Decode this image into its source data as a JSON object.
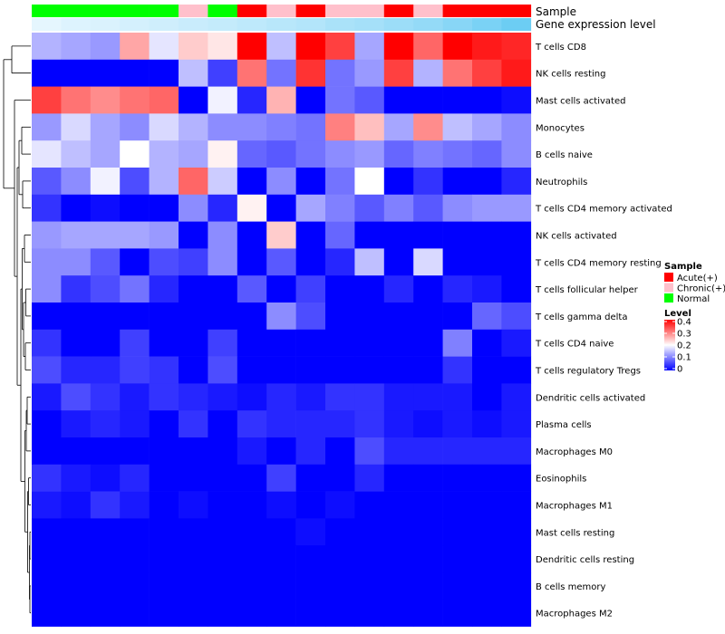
{
  "chart_data": {
    "type": "heatmap",
    "title": "",
    "annotation_tracks": [
      {
        "name": "Sample",
        "legend_title": "Sample"
      },
      {
        "name": "Gene expression level"
      }
    ],
    "rows": [
      "T cells CD8",
      "NK cells resting",
      "Mast cells activated",
      "Monocytes",
      "B cells naive",
      "Neutrophils",
      "T cells CD4 memory activated",
      "NK cells activated",
      "T cells CD4 memory resting",
      "T cells follicular helper",
      "T cells gamma delta",
      "T cells CD4 naive",
      "T cells regulatory  Tregs",
      "Dendritic cells activated",
      "Plasma cells",
      "Macrophages M0",
      "Eosinophils",
      "Macrophages M1",
      "Mast cells resting",
      "Dendritic cells resting",
      "B cells memory",
      "Macrophages M2"
    ],
    "sample_groups": [
      "Normal",
      "Normal",
      "Normal",
      "Normal",
      "Normal",
      "Chronic(+)",
      "Normal",
      "Acute(+)",
      "Chronic(+)",
      "Acute(+)",
      "Chronic(+)",
      "Chronic(+)",
      "Acute(+)",
      "Chronic(+)",
      "Acute(+)",
      "Acute(+)",
      "Acute(+)"
    ],
    "expression_level": [
      0.04,
      0.1,
      0.12,
      0.16,
      0.2,
      0.24,
      0.28,
      0.32,
      0.36,
      0.4,
      0.46,
      0.5,
      0.56,
      0.62,
      0.7,
      0.8,
      0.9
    ],
    "values": [
      [
        0.14,
        0.13,
        0.12,
        0.27,
        0.18,
        0.24,
        0.22,
        0.4,
        0.15,
        0.4,
        0.35,
        0.13,
        0.4,
        0.32,
        0.4,
        0.38,
        0.37
      ],
      [
        0.0,
        0.0,
        0.0,
        0.0,
        0.0,
        0.15,
        0.05,
        0.31,
        0.09,
        0.36,
        0.09,
        0.12,
        0.35,
        0.14,
        0.31,
        0.35,
        0.38
      ],
      [
        0.35,
        0.31,
        0.29,
        0.31,
        0.32,
        0.0,
        0.19,
        0.03,
        0.26,
        0.0,
        0.09,
        0.07,
        0.0,
        0.0,
        0.0,
        0.0,
        0.01
      ],
      [
        0.12,
        0.17,
        0.13,
        0.11,
        0.17,
        0.14,
        0.11,
        0.11,
        0.1,
        0.09,
        0.3,
        0.25,
        0.13,
        0.29,
        0.15,
        0.13,
        0.11
      ],
      [
        0.18,
        0.15,
        0.13,
        0.2,
        0.14,
        0.13,
        0.21,
        0.08,
        0.07,
        0.09,
        0.11,
        0.12,
        0.08,
        0.1,
        0.09,
        0.08,
        0.11
      ],
      [
        0.07,
        0.11,
        0.19,
        0.06,
        0.14,
        0.32,
        0.16,
        0.0,
        0.11,
        0.0,
        0.09,
        0.2,
        0.0,
        0.04,
        0.0,
        0.0,
        0.03
      ],
      [
        0.04,
        0.0,
        0.01,
        0.0,
        0.0,
        0.11,
        0.03,
        0.21,
        0.0,
        0.13,
        0.1,
        0.07,
        0.1,
        0.07,
        0.11,
        0.12,
        0.12
      ],
      [
        0.12,
        0.13,
        0.13,
        0.13,
        0.12,
        0.0,
        0.11,
        0.0,
        0.24,
        0.0,
        0.08,
        0.0,
        0.0,
        0.0,
        0.0,
        0.0,
        0.0
      ],
      [
        0.11,
        0.11,
        0.07,
        0.0,
        0.06,
        0.05,
        0.11,
        0.0,
        0.07,
        0.0,
        0.03,
        0.15,
        0.0,
        0.17,
        0.0,
        0.0,
        0.0
      ],
      [
        0.11,
        0.04,
        0.06,
        0.09,
        0.03,
        0.0,
        0.0,
        0.07,
        0.0,
        0.05,
        0.0,
        0.0,
        0.03,
        0.0,
        0.03,
        0.02,
        0.0
      ],
      [
        0.0,
        0.0,
        0.0,
        0.0,
        0.0,
        0.0,
        0.0,
        0.0,
        0.11,
        0.06,
        0.0,
        0.0,
        0.0,
        0.0,
        0.0,
        0.08,
        0.06
      ],
      [
        0.04,
        0.0,
        0.0,
        0.05,
        0.0,
        0.0,
        0.05,
        0.0,
        0.0,
        0.0,
        0.0,
        0.0,
        0.0,
        0.0,
        0.1,
        0.0,
        0.02
      ],
      [
        0.06,
        0.03,
        0.03,
        0.05,
        0.04,
        0.0,
        0.06,
        0.0,
        0.0,
        0.0,
        0.0,
        0.0,
        0.0,
        0.0,
        0.04,
        0.0,
        0.0
      ],
      [
        0.02,
        0.06,
        0.04,
        0.02,
        0.04,
        0.03,
        0.02,
        0.01,
        0.03,
        0.02,
        0.04,
        0.04,
        0.02,
        0.02,
        0.02,
        0.0,
        0.02
      ],
      [
        0.0,
        0.02,
        0.03,
        0.02,
        0.0,
        0.04,
        0.0,
        0.04,
        0.03,
        0.03,
        0.03,
        0.04,
        0.02,
        0.01,
        0.02,
        0.01,
        0.02
      ],
      [
        0.0,
        0.0,
        0.0,
        0.0,
        0.0,
        0.0,
        0.0,
        0.02,
        0.0,
        0.03,
        0.0,
        0.06,
        0.03,
        0.03,
        0.03,
        0.03,
        0.03
      ],
      [
        0.04,
        0.02,
        0.01,
        0.03,
        0.0,
        0.0,
        0.0,
        0.0,
        0.05,
        0.0,
        0.0,
        0.03,
        0.0,
        0.0,
        0.0,
        0.0,
        0.0
      ],
      [
        0.02,
        0.01,
        0.04,
        0.02,
        0.0,
        0.01,
        0.0,
        0.0,
        0.01,
        0.0,
        0.01,
        0.0,
        0.0,
        0.0,
        0.0,
        0.0,
        0.0
      ],
      [
        0.0,
        0.0,
        0.0,
        0.0,
        0.0,
        0.0,
        0.0,
        0.0,
        0.0,
        0.01,
        0.0,
        0.0,
        0.0,
        0.0,
        0.0,
        0.0,
        0.0
      ],
      [
        0.0,
        0.0,
        0.0,
        0.0,
        0.0,
        0.0,
        0.0,
        0.0,
        0.0,
        0.0,
        0.0,
        0.0,
        0.0,
        0.0,
        0.0,
        0.0,
        0.0
      ],
      [
        0.0,
        0.0,
        0.0,
        0.0,
        0.0,
        0.0,
        0.0,
        0.0,
        0.0,
        0.0,
        0.0,
        0.0,
        0.0,
        0.0,
        0.0,
        0.0,
        0.0
      ],
      [
        0.0,
        0.0,
        0.0,
        0.0,
        0.0,
        0.0,
        0.0,
        0.0,
        0.0,
        0.0,
        0.0,
        0.0,
        0.0,
        0.0,
        0.0,
        0.0,
        0.0
      ]
    ],
    "color_scale": {
      "min": 0,
      "max": 0.4,
      "stops": [
        {
          "value": 0,
          "color": "#0000ff"
        },
        {
          "value": 0.2,
          "color": "#ffffff"
        },
        {
          "value": 0.4,
          "color": "#ff0000"
        }
      ]
    },
    "level_legend": {
      "title": "Level",
      "ticks": [
        {
          "value": 0.4,
          "label": "0.4"
        },
        {
          "value": 0.3,
          "label": "0.3"
        },
        {
          "value": 0.2,
          "label": "0.2"
        },
        {
          "value": 0.1,
          "label": "0.1"
        },
        {
          "value": 0,
          "label": "0"
        }
      ]
    },
    "sample_legend": {
      "title": "Sample",
      "entries": [
        {
          "label": "Acute(+)",
          "color": "#ff0000"
        },
        {
          "label": "Chronic(+)",
          "color": "#ffc0cb"
        },
        {
          "label": "Normal",
          "color": "#00ff00"
        }
      ]
    },
    "expression_colors": {
      "low": "#ebf8ff",
      "high": "#5ec8f2"
    },
    "row_dendrogram": true,
    "legend_position": "right"
  }
}
